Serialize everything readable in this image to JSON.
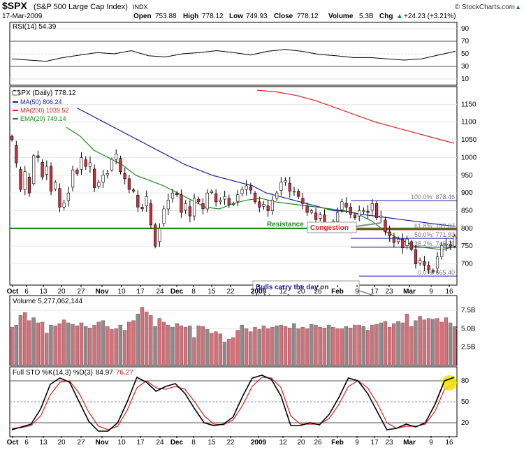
{
  "header": {
    "symbol": "$SPX",
    "name": "(S&P 500 Large Cap Index)",
    "exchange": "INDX",
    "copyright": "© StockCharts.com",
    "date": "17-Mar-2009",
    "open_label": "Open",
    "open": "753.88",
    "high_label": "High",
    "high": "778.12",
    "low_label": "Low",
    "low": "749.93",
    "close_label": "Close",
    "close": "778.12",
    "volume_label": "Volume",
    "volume": "5.3B",
    "chg_label": "Chg",
    "chg": "+24.23 (+3.21%)",
    "up_arrow": "▲"
  },
  "rsi_panel": {
    "label": "RSI(14) 54.39",
    "ticks": [
      "90",
      "70",
      "50",
      "30",
      "10"
    ]
  },
  "price_panel": {
    "label": "$SPX (Daily) 778.12",
    "legend": [
      {
        "text": "MA(50) 806.24",
        "color": "#1a1aa0"
      },
      {
        "text": "MA(200) 1039.52",
        "color": "#e02020"
      },
      {
        "text": "EMA(20) 749.14",
        "color": "#1a8a1a"
      }
    ],
    "ticks": [
      "1150",
      "1100",
      "1050",
      "1000",
      "950",
      "900",
      "850",
      "800",
      "750",
      "700"
    ],
    "fib_levels": [
      {
        "label": "100.0%: 878.46",
        "value": 878.46
      },
      {
        "label": "61.8%: 797.07",
        "value": 797.07
      },
      {
        "label": "50.0%: 771.93",
        "value": 771.93
      },
      {
        "label": "38.2%: 746.79",
        "value": 746.79
      },
      {
        "label": "0.0%: 665.40",
        "value": 665.4
      }
    ],
    "resistance_label": "Resistance",
    "congestion_label": "Congestion",
    "bulls_note": "Bulls carry the day on lighter volume."
  },
  "volume_panel": {
    "label": "Volume 5,277,062,144",
    "ticks": [
      "7.5B",
      "5.0B",
      "2.5B"
    ]
  },
  "sto_panel": {
    "label_prefix": "Full STO %K(14,3) %D(3)",
    "k_value": "84.97",
    "d_value": "76.27",
    "ticks": [
      "80",
      "50",
      "20"
    ]
  },
  "x_axis": {
    "labels": [
      "Oct",
      "6",
      "13",
      "20",
      "27",
      "Nov",
      "10",
      "17",
      "24",
      "Dec",
      "8",
      "15",
      "22",
      "2009",
      "12",
      "20",
      "26",
      "Feb",
      "9",
      "17",
      "23",
      "Mar",
      "9",
      "16"
    ]
  },
  "colors": {
    "up": "#ffffff",
    "down": "#d0303c",
    "vol_down": "#d4707a",
    "vol_up": "#8c8c8c",
    "ma50": "#1a1aa0",
    "ma200": "#e02020",
    "ema20": "#1a8a1a",
    "resistance": "#1a8a1a",
    "sto_k": "#000000",
    "sto_d": "#e02020",
    "highlight": "#f0e000"
  },
  "chart_data": {
    "type": "candlestick",
    "title": "$SPX (S&P 500 Large Cap Index) Daily, Oct 2008 – 17-Mar-2009",
    "ylim": [
      640,
      1200
    ],
    "closes": [
      1050,
      985,
      910,
      960,
      900,
      1005,
      1000,
      945,
      975,
      905,
      930,
      860,
      872,
      900,
      965,
      955,
      1000,
      975,
      985,
      915,
      930,
      950,
      955,
      995,
      1010,
      960,
      940,
      910,
      905,
      860,
      855,
      890,
      810,
      750,
      800,
      855,
      880,
      900,
      895,
      845,
      870,
      835,
      885,
      875,
      855,
      900,
      905,
      875,
      880,
      890,
      868,
      870,
      895,
      910,
      920,
      908,
      875,
      860,
      868,
      850,
      880,
      900,
      930,
      935,
      905,
      905,
      890,
      870,
      845,
      850,
      825,
      838,
      810,
      800,
      820,
      845,
      875,
      860,
      840,
      830,
      850,
      850,
      845,
      870,
      830,
      835,
      790,
      780,
      760,
      770,
      745,
      770,
      740,
      700,
      710,
      696,
      683,
      677,
      720,
      752,
      756,
      750,
      778
    ],
    "series": [
      {
        "name": "MA(50)",
        "values": [
          1140,
          1120,
          1100,
          1080,
          1060,
          1040,
          1020,
          1000,
          980,
          965,
          950,
          940,
          930,
          920,
          900,
          890,
          880,
          870,
          860,
          850,
          848,
          840,
          835,
          830,
          825,
          820,
          815,
          810,
          806
        ]
      },
      {
        "name": "MA(200)",
        "values": [
          1190,
          1185,
          1175,
          1160,
          1140,
          1120,
          1100,
          1085,
          1070,
          1055,
          1040
        ]
      },
      {
        "name": "EMA(20)",
        "values": [
          1085,
          1060,
          1020,
          1000,
          980,
          950,
          935,
          920,
          900,
          880,
          860,
          855,
          870,
          880,
          885,
          875,
          870,
          865,
          860,
          855,
          850,
          840,
          820,
          790,
          770,
          750,
          745,
          740,
          749
        ]
      },
      {
        "name": "RSI(14)",
        "values": [
          42,
          40,
          38,
          44,
          48,
          52,
          50,
          55,
          47,
          45,
          50,
          52,
          55,
          52,
          48,
          54,
          57,
          54,
          49,
          47,
          44,
          44,
          42,
          40,
          42,
          48,
          54
        ]
      },
      {
        "name": "Volume (B)",
        "values": [
          5.2,
          5.5,
          6.8,
          7.2,
          6.1,
          6.5,
          5.8,
          5.9,
          4.4,
          5.5,
          5.4,
          5.7,
          6.2,
          5.8,
          5.6,
          5.4,
          5.8,
          5.3,
          5.1,
          5.5,
          5.9,
          6.1,
          5.3,
          4.9,
          5.0,
          5.5,
          4.8,
          5.9,
          6.1,
          7.0,
          7.9,
          7.3,
          6.8,
          5.3,
          6.4,
          5.9,
          5.5,
          5.2,
          5.7,
          5.4,
          5.2,
          5.4,
          3.8,
          5.4,
          5.3,
          4.9,
          4.4,
          4.6,
          4.3,
          3.2,
          3.6,
          3.8,
          4.8,
          5.5,
          5.0,
          4.6,
          5.2,
          4.9,
          5.4,
          5.0,
          5.2,
          5.4,
          5.5,
          5.3,
          5.1,
          5.7,
          5.0,
          5.2,
          5.0,
          5.6,
          5.5,
          5.2,
          5.1,
          5.5,
          5.2,
          5.0,
          5.0,
          5.3,
          5.1,
          5.5,
          5.5,
          5.3,
          4.8,
          5.5,
          5.6,
          5.8,
          6.0,
          5.2,
          5.7,
          6.0,
          5.8,
          7.0,
          5.3,
          6.1,
          6.7,
          6.2,
          6.4,
          6.3,
          6.4,
          5.9,
          6.5,
          5.8,
          5.3
        ]
      },
      {
        "name": "%K",
        "values": [
          10,
          14,
          18,
          40,
          75,
          84,
          78,
          50,
          22,
          8,
          8,
          20,
          50,
          85,
          78,
          65,
          72,
          76,
          62,
          40,
          20,
          16,
          18,
          28,
          58,
          84,
          88,
          82,
          58,
          16,
          16,
          20,
          17,
          32,
          56,
          84,
          80,
          62,
          36,
          10,
          12,
          18,
          14,
          20,
          46,
          80,
          85
        ]
      },
      {
        "name": "%D",
        "values": [
          12,
          13,
          16,
          30,
          60,
          78,
          80,
          62,
          35,
          15,
          10,
          15,
          38,
          70,
          80,
          70,
          68,
          72,
          68,
          50,
          30,
          18,
          17,
          24,
          45,
          72,
          85,
          84,
          70,
          30,
          18,
          18,
          18,
          26,
          46,
          72,
          80,
          70,
          48,
          20,
          12,
          15,
          15,
          18,
          36,
          68,
          76
        ]
      }
    ]
  }
}
